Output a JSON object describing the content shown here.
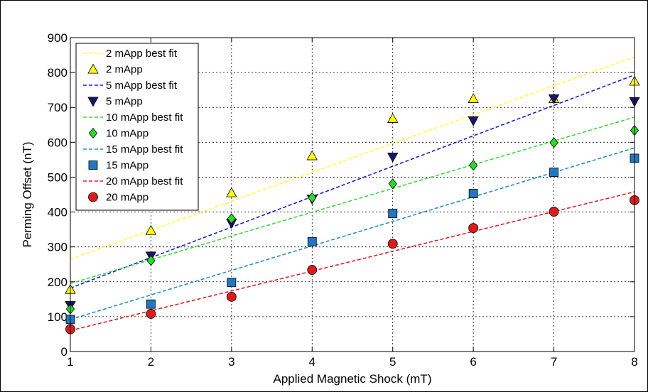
{
  "chart_data": {
    "type": "scatter",
    "xlabel": "Applied Magnetic Shock (mT)",
    "ylabel": "Perming Offset (nT)",
    "xlim": [
      1,
      8
    ],
    "ylim": [
      0,
      900
    ],
    "xticks": [
      1,
      2,
      3,
      4,
      5,
      6,
      7,
      8
    ],
    "yticks": [
      0,
      100,
      200,
      300,
      400,
      500,
      600,
      700,
      800,
      900
    ],
    "grid": true,
    "legend_position": "top-left",
    "x": [
      1,
      2,
      3,
      4,
      5,
      6,
      7,
      8
    ],
    "series": [
      {
        "name": "2 mApp best fit",
        "kind": "line",
        "dash": true,
        "color": "#ffff33",
        "x": [
          1,
          8
        ],
        "y": [
          265,
          845
        ]
      },
      {
        "name": "2 mApp",
        "kind": "marker",
        "marker": "triangle-up",
        "color": "#ffff00",
        "values": [
          178,
          347,
          455,
          561,
          668,
          725,
          725,
          775
        ]
      },
      {
        "name": "5 mApp best fit",
        "kind": "line",
        "dash": true,
        "color": "#1a1ae6",
        "x": [
          1,
          8
        ],
        "y": [
          182,
          793
        ]
      },
      {
        "name": "5 mApp",
        "kind": "marker",
        "marker": "triangle-down",
        "color": "#161670",
        "values": [
          132,
          274,
          368,
          437,
          558,
          662,
          725,
          717
        ]
      },
      {
        "name": "10 mApp best fit",
        "kind": "line",
        "dash": true,
        "color": "#33dd33",
        "x": [
          1,
          8
        ],
        "y": [
          195,
          672
        ]
      },
      {
        "name": "10 mApp",
        "kind": "marker",
        "marker": "diamond",
        "color": "#22e022",
        "values": [
          122,
          261,
          381,
          441,
          481,
          534,
          599,
          634
        ]
      },
      {
        "name": "15 mApp best fit",
        "kind": "line",
        "dash": true,
        "color": "#1e90d0",
        "x": [
          1,
          8
        ],
        "y": [
          92,
          584
        ]
      },
      {
        "name": "15 mApp",
        "kind": "marker",
        "marker": "square",
        "color": "#1f78c0",
        "values": [
          92,
          136,
          198,
          315,
          396,
          453,
          514,
          554
        ]
      },
      {
        "name": "20 mApp best fit",
        "kind": "line",
        "dash": true,
        "color": "#e02020",
        "x": [
          1,
          8
        ],
        "y": [
          60,
          458
        ]
      },
      {
        "name": "20 mApp",
        "kind": "marker",
        "marker": "circle",
        "color": "#e01a1a",
        "values": [
          64,
          108,
          157,
          234,
          309,
          354,
          401,
          434
        ]
      }
    ]
  }
}
